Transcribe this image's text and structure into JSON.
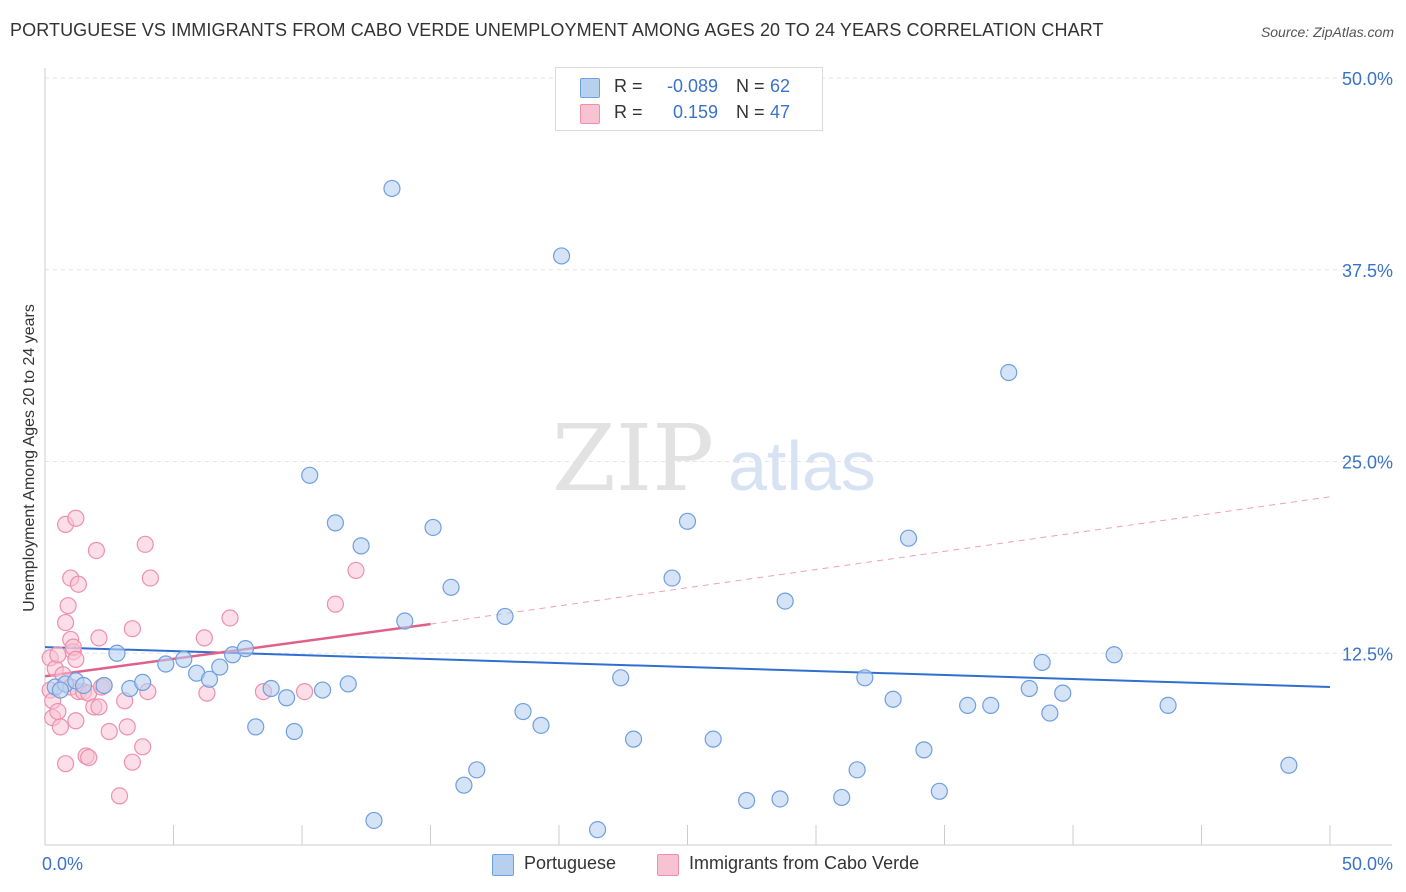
{
  "title": "PORTUGUESE VS IMMIGRANTS FROM CABO VERDE UNEMPLOYMENT AMONG AGES 20 TO 24 YEARS CORRELATION CHART",
  "source": "Source: ZipAtlas.com",
  "watermark": {
    "zip": "ZIP",
    "atlas": "atlas"
  },
  "legend": {
    "rows": [
      {
        "r_label": "R =",
        "r_value": "-0.089",
        "n_label": "N =",
        "n_value": "62"
      },
      {
        "r_label": "R =",
        "r_value": "0.159",
        "n_label": "N =",
        "n_value": "47"
      }
    ]
  },
  "bottom_legend": {
    "series1": "Portuguese",
    "series2": "Immigrants from Cabo Verde"
  },
  "colors": {
    "blue_fill": "#b8d0f0",
    "blue_stroke": "#6f9fe0",
    "blue_line": "#2f6fcf",
    "pink_fill": "#f7c3d3",
    "pink_stroke": "#ee8fae",
    "pink_line": "#e0608a",
    "axis_text": "#3a72c8",
    "grid": "#e4e4e4"
  },
  "chart_data": {
    "type": "scatter",
    "title": "PORTUGUESE VS IMMIGRANTS FROM CABO VERDE UNEMPLOYMENT AMONG AGES 20 TO 24 YEARS CORRELATION CHART",
    "xlabel": "",
    "ylabel": "Unemployment Among Ages 20 to 24 years",
    "xlim": [
      0,
      50
    ],
    "ylim": [
      0,
      50
    ],
    "x_tick_labels": [
      "0.0%",
      "50.0%"
    ],
    "y_tick_labels": [
      "12.5%",
      "25.0%",
      "37.5%",
      "50.0%"
    ],
    "y_ticks": [
      12.5,
      25.0,
      37.5,
      50.0
    ],
    "series": [
      {
        "name": "Portuguese",
        "r": -0.089,
        "n": 62,
        "trend": {
          "x": [
            0,
            50
          ],
          "y": [
            12.9,
            10.3
          ]
        },
        "points": [
          [
            0.4,
            10.3
          ],
          [
            0.8,
            10.5
          ],
          [
            1.2,
            10.7
          ],
          [
            2.3,
            10.4
          ],
          [
            2.8,
            12.5
          ],
          [
            3.3,
            10.2
          ],
          [
            3.8,
            10.6
          ],
          [
            4.7,
            11.8
          ],
          [
            5.4,
            12.1
          ],
          [
            5.9,
            11.2
          ],
          [
            6.4,
            10.8
          ],
          [
            6.8,
            11.6
          ],
          [
            7.3,
            12.4
          ],
          [
            7.8,
            12.8
          ],
          [
            8.2,
            7.7
          ],
          [
            8.8,
            10.2
          ],
          [
            9.4,
            9.6
          ],
          [
            9.7,
            7.4
          ],
          [
            10.3,
            24.1
          ],
          [
            10.8,
            10.1
          ],
          [
            11.3,
            21.0
          ],
          [
            11.8,
            10.5
          ],
          [
            12.3,
            19.5
          ],
          [
            12.8,
            1.6
          ],
          [
            13.5,
            42.8
          ],
          [
            14.0,
            14.6
          ],
          [
            15.1,
            20.7
          ],
          [
            15.8,
            16.8
          ],
          [
            16.3,
            3.9
          ],
          [
            16.8,
            4.9
          ],
          [
            17.9,
            14.9
          ],
          [
            18.6,
            8.7
          ],
          [
            19.3,
            7.8
          ],
          [
            20.1,
            38.4
          ],
          [
            21.5,
            1.0
          ],
          [
            22.4,
            10.9
          ],
          [
            22.9,
            6.9
          ],
          [
            24.4,
            17.4
          ],
          [
            25.0,
            21.1
          ],
          [
            26.0,
            6.9
          ],
          [
            27.3,
            2.9
          ],
          [
            28.6,
            3.0
          ],
          [
            28.8,
            15.9
          ],
          [
            31.0,
            3.1
          ],
          [
            31.6,
            4.9
          ],
          [
            31.9,
            10.9
          ],
          [
            33.0,
            9.5
          ],
          [
            33.6,
            20.0
          ],
          [
            34.2,
            6.2
          ],
          [
            34.8,
            3.5
          ],
          [
            35.9,
            9.1
          ],
          [
            36.8,
            9.1
          ],
          [
            37.5,
            30.8
          ],
          [
            38.3,
            10.2
          ],
          [
            38.8,
            11.9
          ],
          [
            39.1,
            8.6
          ],
          [
            39.6,
            9.9
          ],
          [
            41.6,
            12.4
          ],
          [
            43.7,
            9.1
          ],
          [
            48.4,
            5.2
          ],
          [
            0.6,
            10.1
          ],
          [
            1.5,
            10.4
          ]
        ]
      },
      {
        "name": "Immigrants from Cabo Verde",
        "r": 0.159,
        "n": 47,
        "trend": {
          "x": [
            0,
            15
          ],
          "y": [
            11.0,
            14.4
          ],
          "x_dashed": [
            15,
            50
          ],
          "y_dashed": [
            14.4,
            22.7
          ]
        },
        "points": [
          [
            0.2,
            12.2
          ],
          [
            0.2,
            10.1
          ],
          [
            0.3,
            8.3
          ],
          [
            0.3,
            9.4
          ],
          [
            0.4,
            11.5
          ],
          [
            0.5,
            8.7
          ],
          [
            0.5,
            12.4
          ],
          [
            0.6,
            7.7
          ],
          [
            0.7,
            11.1
          ],
          [
            0.8,
            14.5
          ],
          [
            0.8,
            5.3
          ],
          [
            0.8,
            20.9
          ],
          [
            0.9,
            15.6
          ],
          [
            1.0,
            17.4
          ],
          [
            1.0,
            10.3
          ],
          [
            1.0,
            13.4
          ],
          [
            1.1,
            12.6
          ],
          [
            1.1,
            12.9
          ],
          [
            1.2,
            8.1
          ],
          [
            1.2,
            21.3
          ],
          [
            1.2,
            12.1
          ],
          [
            1.3,
            17.0
          ],
          [
            1.3,
            10.0
          ],
          [
            1.5,
            10.0
          ],
          [
            1.6,
            5.8
          ],
          [
            1.7,
            9.9
          ],
          [
            1.7,
            5.7
          ],
          [
            1.9,
            9.0
          ],
          [
            2.0,
            19.2
          ],
          [
            2.1,
            9.0
          ],
          [
            2.1,
            13.5
          ],
          [
            2.2,
            10.3
          ],
          [
            2.3,
            10.4
          ],
          [
            2.5,
            7.4
          ],
          [
            2.9,
            3.2
          ],
          [
            3.1,
            9.4
          ],
          [
            3.2,
            7.7
          ],
          [
            3.4,
            5.4
          ],
          [
            3.4,
            14.1
          ],
          [
            3.8,
            6.4
          ],
          [
            3.9,
            19.6
          ],
          [
            4.1,
            17.4
          ],
          [
            6.2,
            13.5
          ],
          [
            6.3,
            9.9
          ],
          [
            7.2,
            14.8
          ],
          [
            8.5,
            10.0
          ],
          [
            11.3,
            15.7
          ]
        ]
      }
    ],
    "extra_pink_points": [
      [
        10.1,
        10.0
      ],
      [
        12.1,
        17.9
      ],
      [
        4.0,
        10.0
      ]
    ]
  }
}
